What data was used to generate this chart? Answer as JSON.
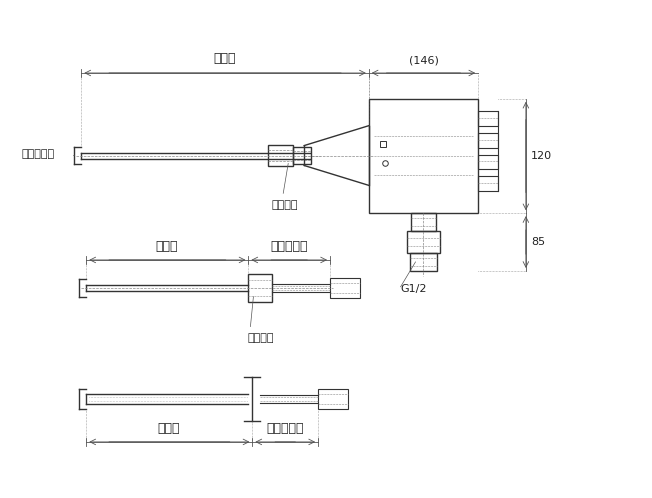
{
  "bg_color": "#ffffff",
  "line_color": "#333333",
  "dashed_color": "#888888",
  "dim_color": "#555555",
  "text_color": "#222222",
  "fig_width": 6.52,
  "fig_height": 4.98,
  "labels": {
    "insertion_len": "挿入長",
    "sheath_od": "シース外径",
    "mount_fitting": "取付金具",
    "nipple_len": "ニップル長",
    "dim_146": "(146)",
    "dim_120": "120",
    "dim_85": "85",
    "dim_g12": "G1/2"
  }
}
